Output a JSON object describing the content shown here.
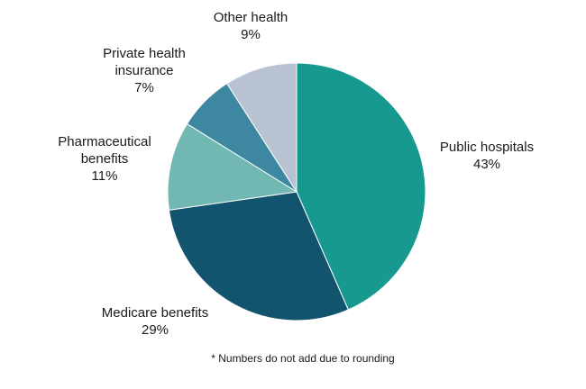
{
  "chart_data": {
    "type": "pie",
    "title": "",
    "slices": [
      {
        "label": [
          "Public hospitals"
        ],
        "percent_text": "43%",
        "value": 43,
        "color": "#17998f"
      },
      {
        "label": [
          "Medicare benefits"
        ],
        "percent_text": "29%",
        "value": 29,
        "color": "#12536e"
      },
      {
        "label": [
          "Pharmaceutical",
          "benefits"
        ],
        "percent_text": "11%",
        "value": 11,
        "color": "#72b8b2"
      },
      {
        "label": [
          "Private health",
          "insurance"
        ],
        "percent_text": "7%",
        "value": 7,
        "color": "#3e87a1"
      },
      {
        "label": [
          "Other health"
        ],
        "percent_text": "9%",
        "value": 9,
        "color": "#b8c2d0"
      }
    ],
    "footnote": "* Numbers do not add due to rounding"
  }
}
